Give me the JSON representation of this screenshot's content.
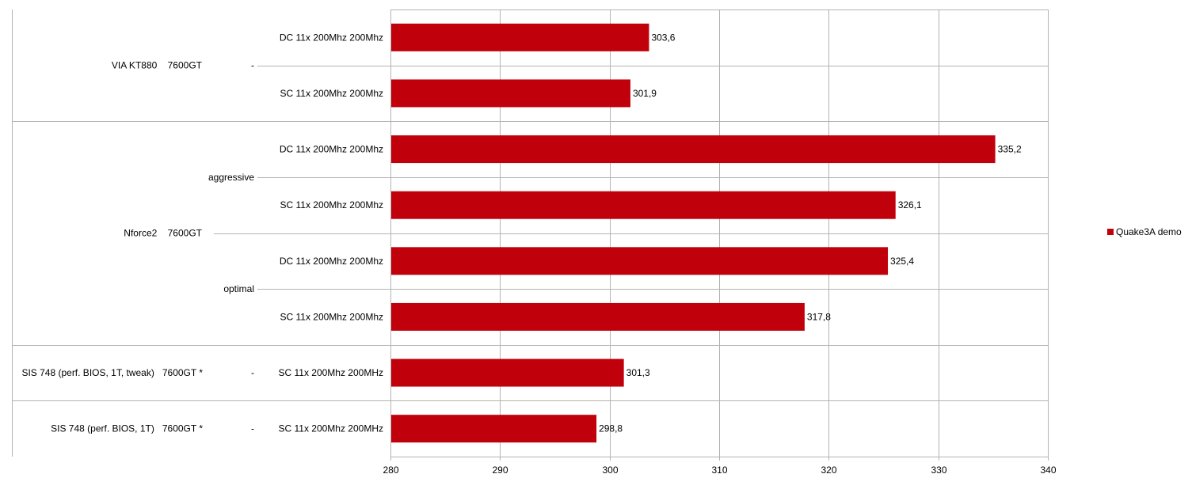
{
  "chart_data": {
    "type": "bar",
    "orientation": "horizontal",
    "categories": [
      {
        "group": "VIA KT880    7600GT",
        "subgroup": "-",
        "label": "DC  11x  200Mhz  200Mhz",
        "value": 303.6,
        "value_label": "303,6"
      },
      {
        "group": "VIA KT880    7600GT",
        "subgroup": "-",
        "label": "SC  11x  200Mhz  200Mhz",
        "value": 301.9,
        "value_label": "301,9"
      },
      {
        "group": "Nforce2    7600GT",
        "subgroup": "aggressive",
        "label": "DC  11x  200Mhz  200Mhz",
        "value": 335.2,
        "value_label": "335,2"
      },
      {
        "group": "Nforce2    7600GT",
        "subgroup": "aggressive",
        "label": "SC  11x  200Mhz  200Mhz",
        "value": 326.1,
        "value_label": "326,1"
      },
      {
        "group": "Nforce2    7600GT",
        "subgroup": "optimal",
        "label": "DC  11x  200Mhz  200Mhz",
        "value": 325.4,
        "value_label": "325,4"
      },
      {
        "group": "Nforce2    7600GT",
        "subgroup": "optimal",
        "label": "SC  11x  200Mhz  200Mhz",
        "value": 317.8,
        "value_label": "317,8"
      },
      {
        "group": "SIS 748 (perf. BIOS, 1T, tweak)   7600GT *",
        "subgroup": "-",
        "label": "SC  11x  200Mhz  200MHz",
        "value": 301.3,
        "value_label": "301,3"
      },
      {
        "group": "SIS 748 (perf. BIOS, 1T)   7600GT *",
        "subgroup": "-",
        "label": "SC  11x  200Mhz  200MHz",
        "value": 298.8,
        "value_label": "298,8"
      }
    ],
    "series": [
      {
        "name": "Quake3A demo",
        "color": "#c0000b"
      }
    ],
    "xlim": [
      280,
      340
    ],
    "xticks": [
      "280",
      "290",
      "300",
      "310",
      "320",
      "330",
      "340"
    ],
    "grid": true,
    "legend_position": "right",
    "title": "",
    "xlabel": "",
    "ylabel": ""
  }
}
